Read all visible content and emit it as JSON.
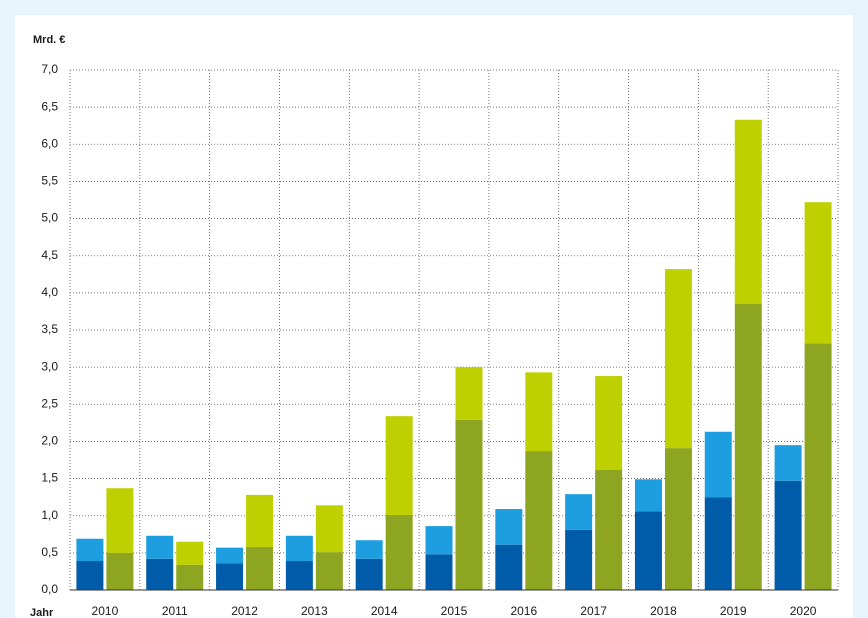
{
  "chart_data": {
    "type": "stacked_grouped_bar",
    "y_label": "Mrd. €",
    "x_label": "Jahr",
    "categories": [
      "2010",
      "2011",
      "2012",
      "2013",
      "2014",
      "2015",
      "2016",
      "2017",
      "2018",
      "2019",
      "2020"
    ],
    "series": [
      {
        "color": "#005ca9",
        "stack": 0,
        "values": [
          0.39,
          0.42,
          0.36,
          0.39,
          0.42,
          0.48,
          0.61,
          0.81,
          1.06,
          1.25,
          1.47
        ]
      },
      {
        "color": "#1c9ee0",
        "stack": 0,
        "values": [
          0.3,
          0.31,
          0.21,
          0.34,
          0.25,
          0.38,
          0.48,
          0.48,
          0.43,
          0.88,
          0.48
        ]
      },
      {
        "color": "#8ea522",
        "stack": 1,
        "values": [
          0.5,
          0.34,
          0.58,
          0.51,
          1.01,
          2.29,
          1.87,
          1.62,
          1.91,
          3.85,
          3.32
        ]
      },
      {
        "color": "#bfd000",
        "stack": 1,
        "values": [
          0.87,
          0.31,
          0.7,
          0.63,
          1.33,
          0.71,
          1.06,
          1.26,
          2.41,
          2.48,
          1.9
        ]
      }
    ],
    "ylim": [
      0,
      7
    ],
    "yticks": [
      {
        "value": 0,
        "label": "0,0"
      },
      {
        "value": 0.5,
        "label": "0,5"
      },
      {
        "value": 1,
        "label": "1,0"
      },
      {
        "value": 1.5,
        "label": "1,5"
      },
      {
        "value": 2,
        "label": "2,0"
      },
      {
        "value": 2.5,
        "label": "2,5"
      },
      {
        "value": 3,
        "label": "3,0"
      },
      {
        "value": 3.5,
        "label": "3,5"
      },
      {
        "value": 4,
        "label": "4,0"
      },
      {
        "value": 4.5,
        "label": "4,5"
      },
      {
        "value": 5,
        "label": "5,0"
      },
      {
        "value": 5.5,
        "label": "5,5"
      },
      {
        "value": 6,
        "label": "6,0"
      },
      {
        "value": 6.5,
        "label": "6,5"
      },
      {
        "value": 7,
        "label": "7,0"
      }
    ],
    "grid": true
  }
}
